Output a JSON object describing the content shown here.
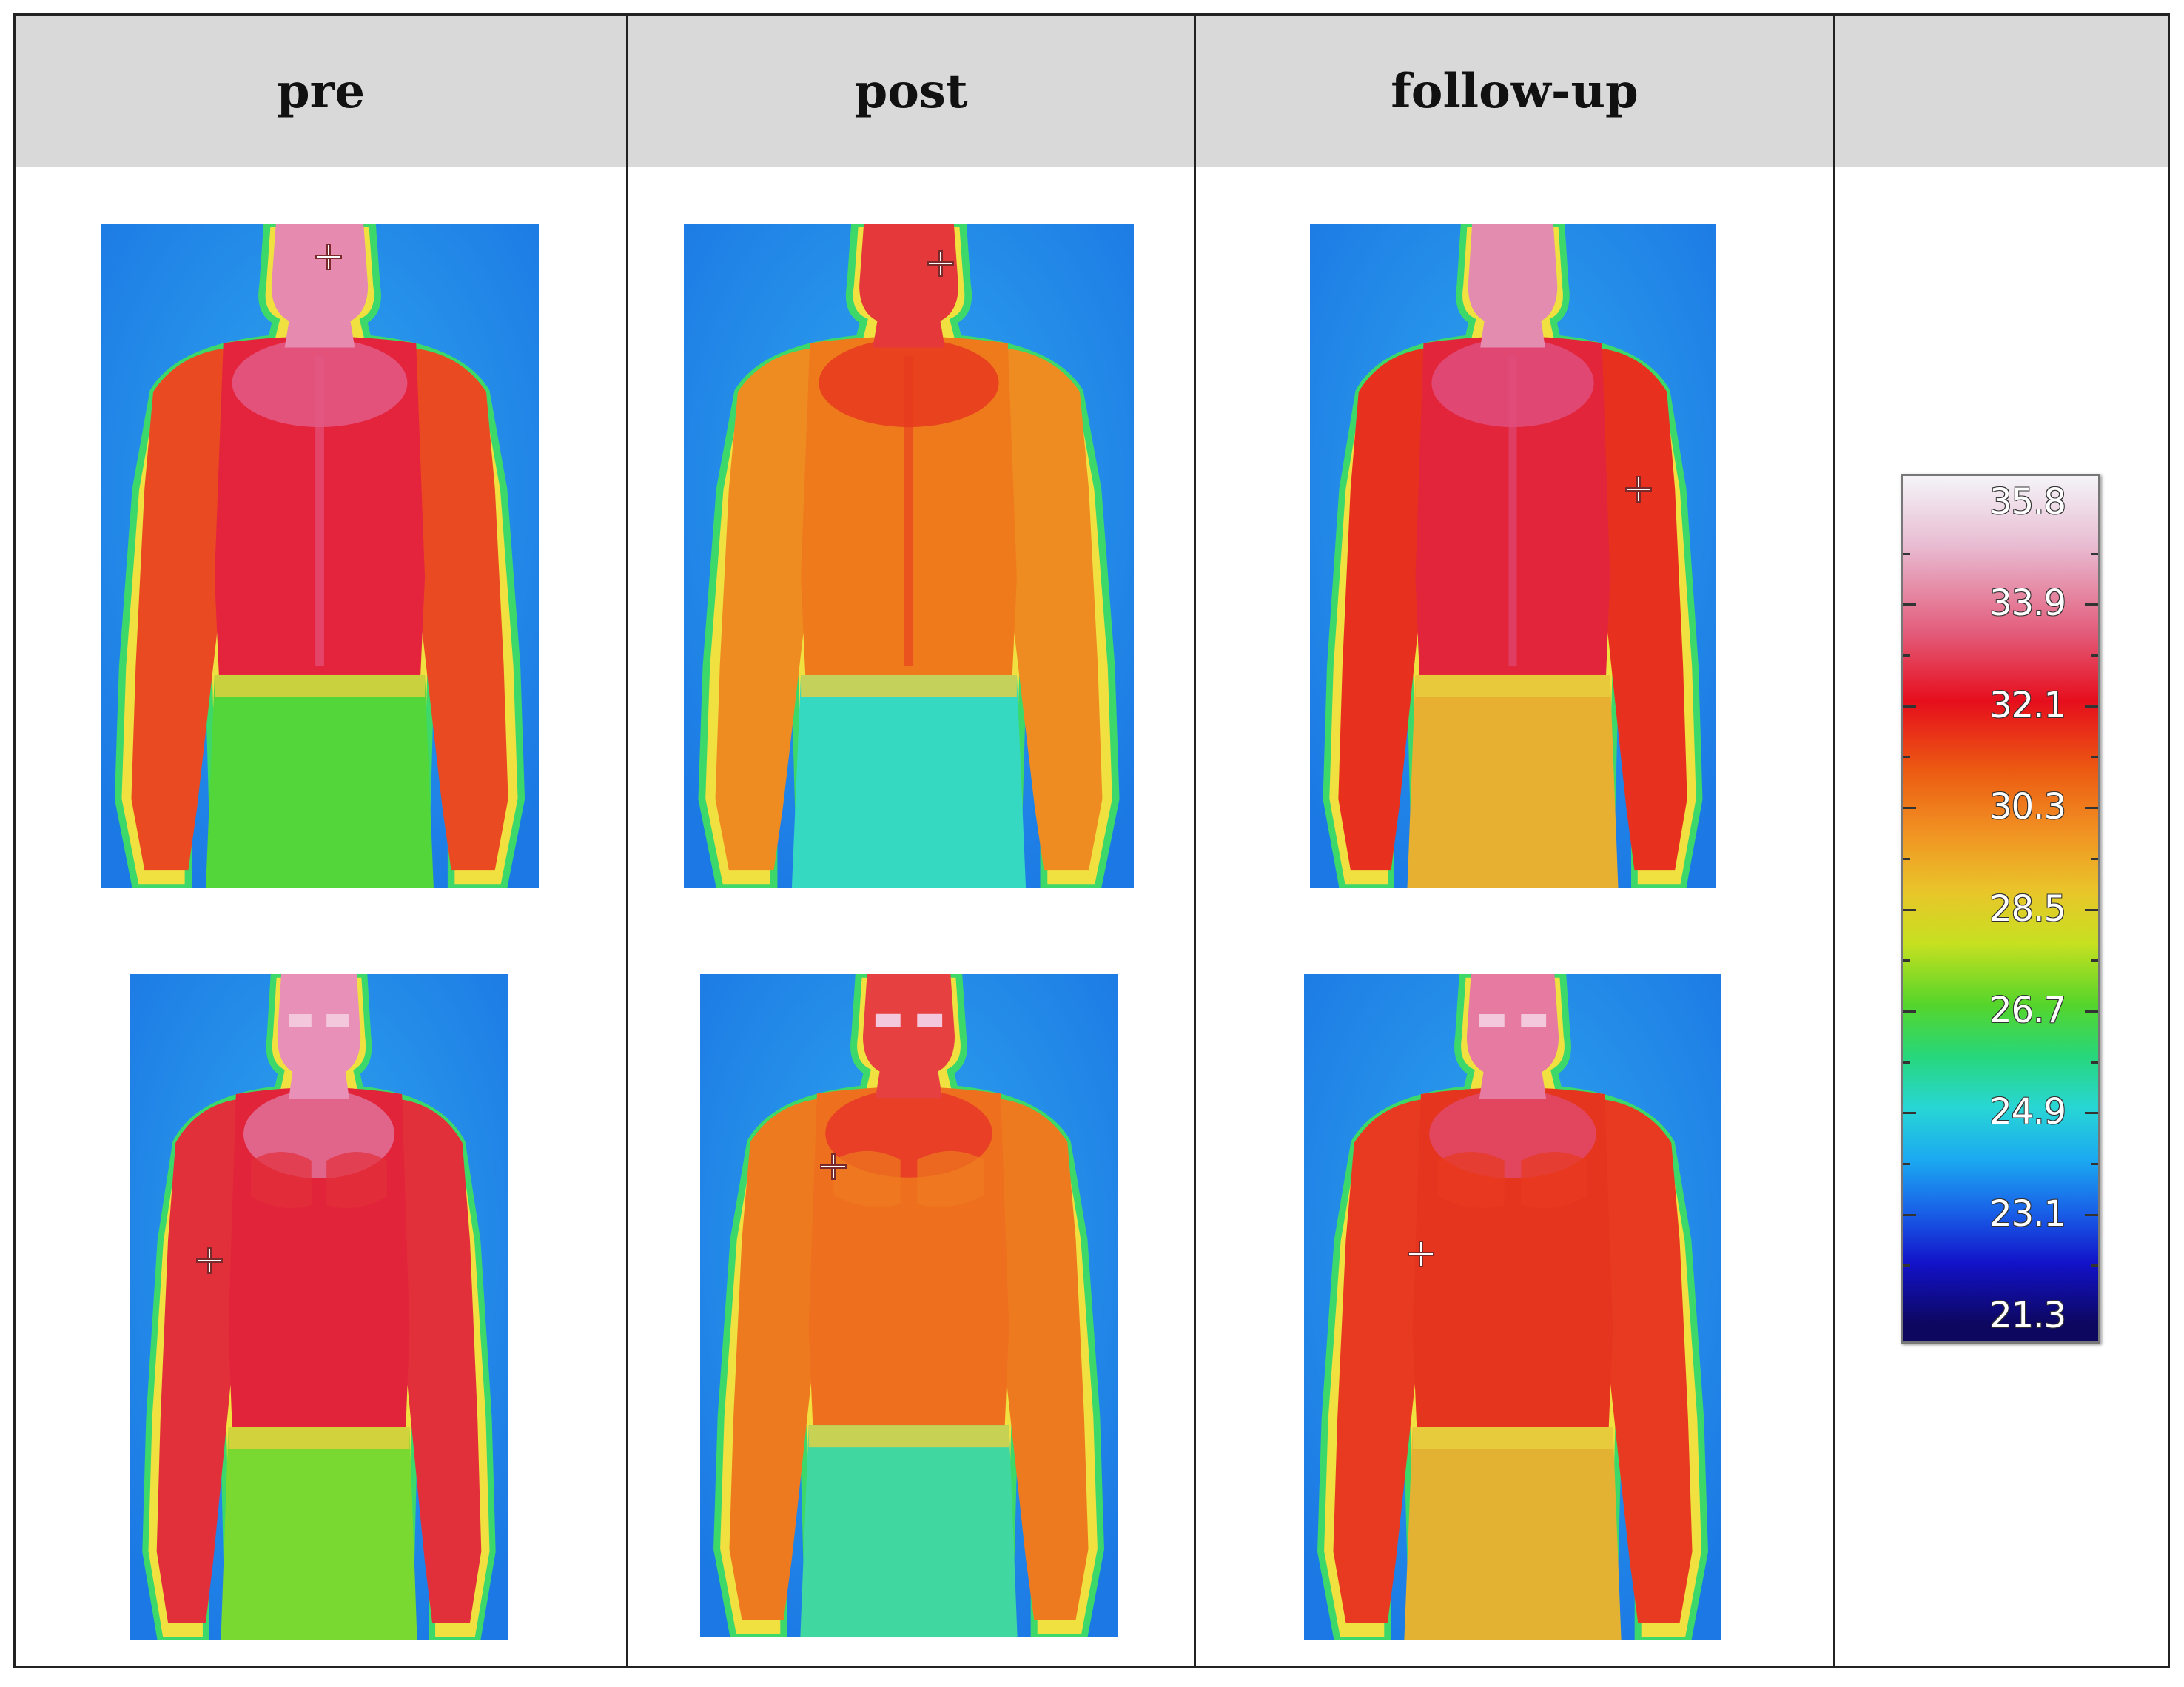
{
  "table": {
    "headers": [
      "pre",
      "post",
      "follow-up",
      ""
    ]
  },
  "thermograms": [
    {
      "column": "pre",
      "view": "back"
    },
    {
      "column": "post",
      "view": "back"
    },
    {
      "column": "follow-up",
      "view": "back"
    },
    {
      "column": "pre",
      "view": "front"
    },
    {
      "column": "post",
      "view": "front"
    },
    {
      "column": "follow-up",
      "view": "front"
    }
  ],
  "colorbar": {
    "labels": [
      "35.8",
      "33.9",
      "32.1",
      "30.3",
      "28.5",
      "26.7",
      "24.9",
      "23.1",
      "21.3"
    ]
  },
  "colors": {
    "background_blue": "#1e8fe8",
    "hot": "#e4163a",
    "warm": "#ef6a1c",
    "cool": "#3bd66a"
  }
}
